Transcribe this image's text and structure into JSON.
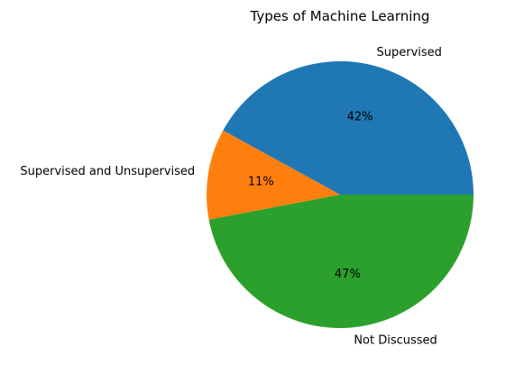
{
  "chart_data": {
    "type": "pie",
    "title": "Types of Machine Learning",
    "categories": [
      "Supervised",
      "Supervised and Unsupervised",
      "Not Discussed"
    ],
    "values": [
      42,
      11,
      47
    ],
    "percent_labels": [
      "42%",
      "11%",
      "47%"
    ],
    "colors": [
      "#1f77b4",
      "#ff7f0e",
      "#2ca02c"
    ],
    "start_angle_deg": 0,
    "direction": "counterclockwise",
    "legend": "none"
  }
}
